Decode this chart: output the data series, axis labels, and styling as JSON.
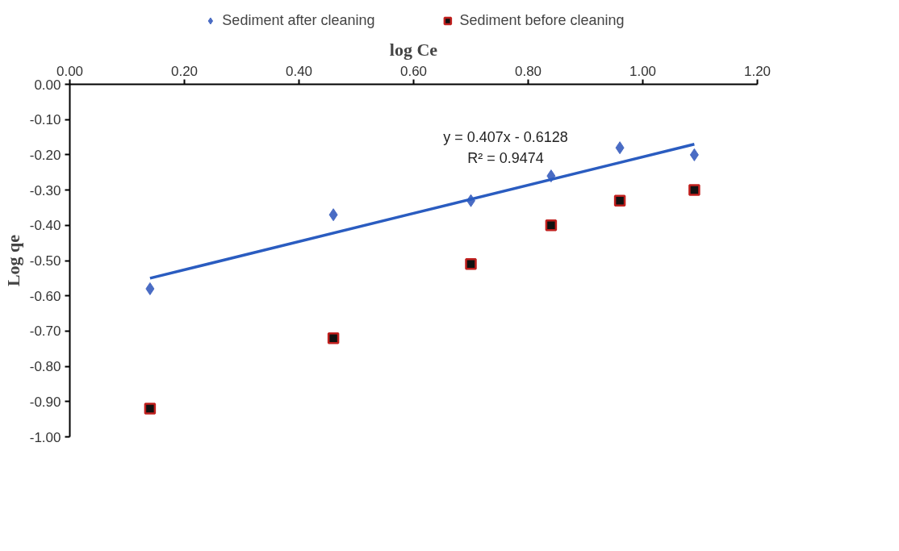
{
  "chart_data": {
    "type": "scatter",
    "xlabel": "log Ce",
    "ylabel": "Log qe",
    "xlim": [
      0,
      1.2
    ],
    "ylim": [
      -1.0,
      0.0
    ],
    "xticks": [
      {
        "value": 0,
        "label": "0.00"
      },
      {
        "value": 0.2,
        "label": "0.20"
      },
      {
        "value": 0.4,
        "label": "0.40"
      },
      {
        "value": 0.6,
        "label": "0.60"
      },
      {
        "value": 0.8,
        "label": "0.80"
      },
      {
        "value": 1.0,
        "label": "1.00"
      },
      {
        "value": 1.2,
        "label": "1.20"
      }
    ],
    "yticks": [
      {
        "value": 0,
        "label": "0.00"
      },
      {
        "value": -0.1,
        "label": "-0.10"
      },
      {
        "value": -0.2,
        "label": "-0.20"
      },
      {
        "value": -0.3,
        "label": "-0.30"
      },
      {
        "value": -0.4,
        "label": "-0.40"
      },
      {
        "value": -0.5,
        "label": "-0.50"
      },
      {
        "value": -0.6,
        "label": "-0.60"
      },
      {
        "value": -0.7,
        "label": "-0.70"
      },
      {
        "value": -0.8,
        "label": "-0.80"
      },
      {
        "value": -0.9,
        "label": "-0.90"
      },
      {
        "value": -1.0,
        "label": "-1.00"
      }
    ],
    "x": [
      0.14,
      0.46,
      0.7,
      0.84,
      0.96,
      1.09
    ],
    "series": [
      {
        "name": "Sediment after cleaning",
        "color": "#4a6cc4",
        "marker": "diamond",
        "values": [
          -0.58,
          -0.37,
          -0.33,
          -0.26,
          -0.18,
          -0.2
        ]
      },
      {
        "name": "Sediment before cleaning",
        "color": "#c0201e",
        "marker": "square",
        "values": [
          -0.92,
          -0.72,
          -0.51,
          -0.4,
          -0.33,
          -0.3
        ]
      },
      {
        "type": "line",
        "color": "#2a5cc0",
        "x": [
          0.14,
          1.09
        ],
        "values": [
          -0.55,
          -0.17
        ]
      }
    ],
    "annotations": [
      "y = 0.407x - 0.6128",
      "R² = 0.9474"
    ],
    "grid": false,
    "legend": "top"
  }
}
